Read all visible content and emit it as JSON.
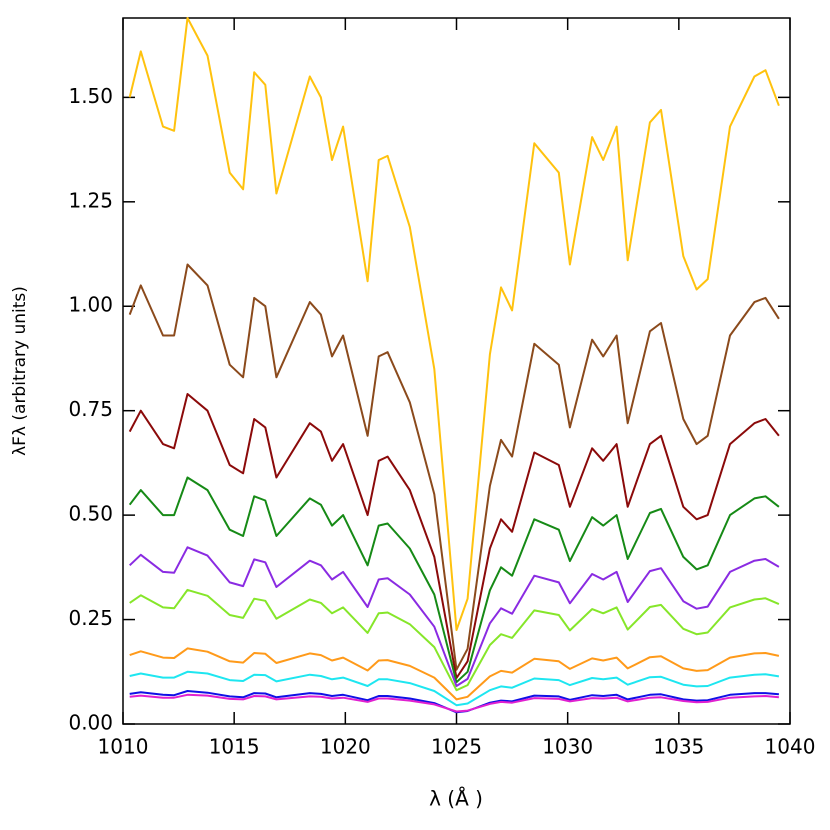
{
  "chart_data": {
    "type": "line",
    "x_label": "λ (Å )",
    "y_label": "λFλ (arbitrary units)",
    "xlim": [
      1010,
      1040
    ],
    "xticks": [
      1010,
      1015,
      1020,
      1025,
      1030,
      1035,
      1040
    ],
    "ylim": [
      0,
      1.69
    ],
    "yticks": [
      {
        "value": 0,
        "label": "0.00"
      },
      {
        "value": 0.25,
        "label": "0.25"
      },
      {
        "value": 0.5,
        "label": "0.50"
      },
      {
        "value": 0.75,
        "label": "0.75"
      },
      {
        "value": 1.0,
        "label": "1.00"
      },
      {
        "value": 1.25,
        "label": "1.25"
      },
      {
        "value": 1.5,
        "label": "1.50"
      }
    ],
    "x": [
      1010.3,
      1010.8,
      1011.8,
      1012.3,
      1012.9,
      1013.8,
      1014.8,
      1015.4,
      1015.9,
      1016.4,
      1016.9,
      1018.4,
      1018.9,
      1019.4,
      1019.9,
      1021.0,
      1021.5,
      1021.9,
      1022.9,
      1024.0,
      1025.0,
      1025.5,
      1026.5,
      1027.0,
      1027.5,
      1028.5,
      1029.6,
      1030.1,
      1031.1,
      1031.6,
      1032.2,
      1032.7,
      1033.7,
      1034.2,
      1035.2,
      1035.8,
      1036.3,
      1037.3,
      1038.4,
      1038.9,
      1039.5
    ],
    "series": [
      {
        "color": "#ffc20e",
        "values": [
          1.5,
          1.61,
          1.43,
          1.42,
          1.69,
          1.6,
          1.32,
          1.28,
          1.56,
          1.53,
          1.27,
          1.55,
          1.5,
          1.35,
          1.43,
          1.06,
          1.35,
          1.36,
          1.19,
          0.85,
          0.225,
          0.3,
          0.885,
          1.045,
          0.99,
          1.39,
          1.32,
          1.1,
          1.405,
          1.35,
          1.43,
          1.11,
          1.44,
          1.47,
          1.12,
          1.04,
          1.065,
          1.43,
          1.55,
          1.565,
          1.48
        ]
      },
      {
        "color": "#8b4a1c",
        "values": [
          0.98,
          1.05,
          0.93,
          0.93,
          1.1,
          1.05,
          0.86,
          0.83,
          1.02,
          1.0,
          0.83,
          1.01,
          0.98,
          0.88,
          0.93,
          0.69,
          0.88,
          0.89,
          0.77,
          0.55,
          0.13,
          0.18,
          0.57,
          0.68,
          0.64,
          0.91,
          0.86,
          0.71,
          0.92,
          0.88,
          0.93,
          0.72,
          0.94,
          0.96,
          0.73,
          0.67,
          0.69,
          0.93,
          1.01,
          1.02,
          0.97
        ]
      },
      {
        "color": "#8b0a0a",
        "values": [
          0.7,
          0.75,
          0.67,
          0.66,
          0.79,
          0.75,
          0.62,
          0.6,
          0.73,
          0.71,
          0.59,
          0.72,
          0.7,
          0.63,
          0.67,
          0.5,
          0.63,
          0.64,
          0.56,
          0.4,
          0.11,
          0.15,
          0.42,
          0.49,
          0.46,
          0.65,
          0.62,
          0.52,
          0.66,
          0.63,
          0.67,
          0.52,
          0.67,
          0.69,
          0.52,
          0.49,
          0.5,
          0.67,
          0.72,
          0.73,
          0.69
        ]
      },
      {
        "color": "#168a16",
        "values": [
          0.525,
          0.56,
          0.5,
          0.5,
          0.59,
          0.56,
          0.465,
          0.45,
          0.545,
          0.535,
          0.45,
          0.54,
          0.525,
          0.475,
          0.5,
          0.38,
          0.475,
          0.48,
          0.42,
          0.31,
          0.1,
          0.125,
          0.32,
          0.375,
          0.355,
          0.49,
          0.465,
          0.39,
          0.495,
          0.475,
          0.5,
          0.395,
          0.505,
          0.515,
          0.4,
          0.37,
          0.38,
          0.5,
          0.54,
          0.545,
          0.52
        ]
      },
      {
        "color": "#8a2be2",
        "values": [
          0.38,
          0.405,
          0.364,
          0.362,
          0.423,
          0.403,
          0.339,
          0.33,
          0.394,
          0.387,
          0.328,
          0.391,
          0.38,
          0.346,
          0.364,
          0.28,
          0.346,
          0.349,
          0.31,
          0.233,
          0.091,
          0.108,
          0.241,
          0.277,
          0.264,
          0.355,
          0.339,
          0.289,
          0.359,
          0.346,
          0.364,
          0.292,
          0.366,
          0.373,
          0.294,
          0.276,
          0.281,
          0.364,
          0.391,
          0.395,
          0.376
        ]
      },
      {
        "color": "#86e62a",
        "values": [
          0.29,
          0.308,
          0.279,
          0.277,
          0.321,
          0.307,
          0.261,
          0.254,
          0.3,
          0.295,
          0.252,
          0.298,
          0.29,
          0.265,
          0.279,
          0.218,
          0.265,
          0.267,
          0.239,
          0.184,
          0.081,
          0.093,
          0.189,
          0.215,
          0.206,
          0.272,
          0.261,
          0.224,
          0.275,
          0.265,
          0.279,
          0.226,
          0.28,
          0.285,
          0.228,
          0.215,
          0.219,
          0.279,
          0.298,
          0.301,
          0.287
        ]
      },
      {
        "color": "#ff9a1a",
        "values": [
          0.165,
          0.174,
          0.159,
          0.158,
          0.181,
          0.173,
          0.15,
          0.147,
          0.17,
          0.168,
          0.146,
          0.169,
          0.165,
          0.152,
          0.159,
          0.128,
          0.152,
          0.153,
          0.139,
          0.111,
          0.059,
          0.065,
          0.114,
          0.127,
          0.123,
          0.156,
          0.15,
          0.132,
          0.157,
          0.152,
          0.159,
          0.133,
          0.16,
          0.162,
          0.133,
          0.127,
          0.129,
          0.159,
          0.169,
          0.17,
          0.163
        ]
      },
      {
        "color": "#1ee6f0",
        "values": [
          0.115,
          0.121,
          0.111,
          0.111,
          0.125,
          0.121,
          0.105,
          0.103,
          0.118,
          0.117,
          0.102,
          0.118,
          0.115,
          0.107,
          0.111,
          0.091,
          0.107,
          0.107,
          0.098,
          0.079,
          0.045,
          0.049,
          0.081,
          0.09,
          0.087,
          0.109,
          0.105,
          0.093,
          0.11,
          0.107,
          0.111,
          0.094,
          0.112,
          0.113,
          0.094,
          0.09,
          0.091,
          0.111,
          0.118,
          0.119,
          0.114
        ]
      },
      {
        "color": "#1010e6",
        "values": [
          0.072,
          0.076,
          0.07,
          0.069,
          0.079,
          0.075,
          0.066,
          0.064,
          0.074,
          0.073,
          0.064,
          0.074,
          0.072,
          0.067,
          0.07,
          0.057,
          0.067,
          0.067,
          0.061,
          0.05,
          0.028,
          0.031,
          0.051,
          0.056,
          0.054,
          0.068,
          0.066,
          0.058,
          0.069,
          0.067,
          0.07,
          0.059,
          0.07,
          0.071,
          0.059,
          0.056,
          0.057,
          0.07,
          0.074,
          0.074,
          0.071
        ]
      },
      {
        "color": "#e020d0",
        "values": [
          0.065,
          0.068,
          0.063,
          0.063,
          0.07,
          0.068,
          0.06,
          0.059,
          0.067,
          0.066,
          0.059,
          0.066,
          0.065,
          0.061,
          0.063,
          0.053,
          0.061,
          0.061,
          0.056,
          0.047,
          0.03,
          0.032,
          0.048,
          0.053,
          0.051,
          0.062,
          0.06,
          0.054,
          0.062,
          0.061,
          0.063,
          0.054,
          0.063,
          0.064,
          0.055,
          0.052,
          0.053,
          0.063,
          0.066,
          0.067,
          0.064
        ]
      }
    ]
  }
}
